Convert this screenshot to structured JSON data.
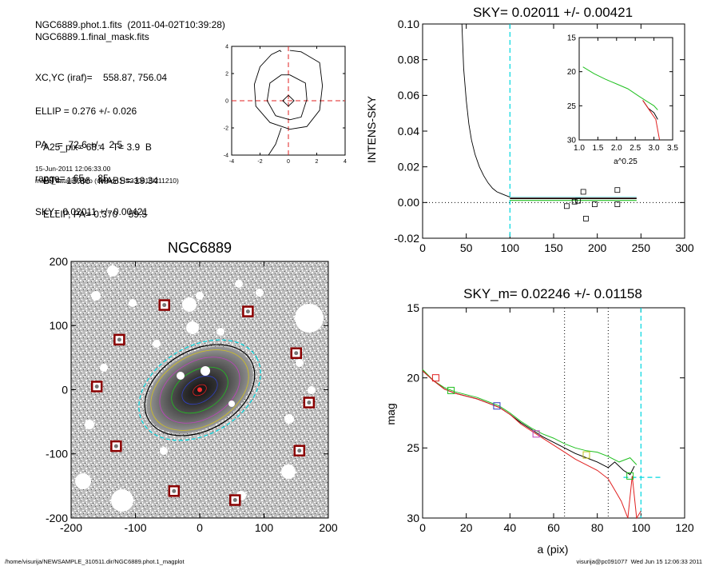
{
  "header": {
    "line1": "NGC6889.phot.1.fits  (2011-04-02T10:39:28)",
    "line2": "NGC6889.1.final_mask.fits",
    "params": [
      "XC,YC (iraf)=    558.87, 756.04",
      "ELLIP = 0.276 +/- 0.026",
      "PA    =  72.6 +/-   2.5",
      "range=   65.-   85.",
      "SKY= 0.02011 +/- 0.00421"
    ],
    "photometry": [
      "A25_pix= 68.4   T= 3.9  B",
      "BT=  13.86   MABS=-19.34",
      "ELLIP, PA= 0.370    59.5"
    ],
    "date": "15-Jun-2011 12:06:33.00",
    "program": "make_datalist0.pro (version HS230610/211210)"
  },
  "footer": {
    "path": "/home/visurija/NEWSAMPLE_310511.dir/NGC6889.phot.1_magplot",
    "user": "visurija@pc091077  Wed Jun 15 12:06:33 2011"
  },
  "colors": {
    "cyan": "#00d8e0",
    "red": "#e02020",
    "green": "#20c020",
    "gray": "#888888",
    "box": "#8b0000"
  },
  "chart_data": [
    {
      "id": "contour",
      "type": "line",
      "title": "",
      "xlim": [
        -4,
        4
      ],
      "ylim": [
        -4,
        4
      ],
      "xticks": [
        -4,
        -2,
        0,
        2,
        4
      ],
      "yticks": [
        -4,
        -2,
        0,
        2,
        4
      ],
      "series": [
        {
          "x": [
            0.1,
            0.9,
            2.2,
            2.4,
            2.2,
            1.3,
            0.1,
            -1.3,
            -2.3,
            -2.4,
            -2.0,
            -1.2,
            -0.6,
            -0.5
          ],
          "y": [
            3.7,
            3.6,
            2.8,
            1.1,
            -0.7,
            -1.9,
            -2.1,
            -1.6,
            -0.4,
            1.2,
            2.5,
            3.4,
            3.7,
            3.6
          ]
        },
        {
          "x": [
            0.1,
            1.2,
            1.3,
            0.9,
            0.1,
            -0.9,
            -1.5,
            -1.3,
            -0.5,
            0.1
          ],
          "y": [
            1.9,
            1.3,
            0.1,
            -1.2,
            -1.4,
            -1.1,
            0.0,
            1.3,
            1.9,
            1.9
          ]
        },
        {
          "x": [
            0.0,
            0.4,
            0.0,
            -0.4,
            0.0
          ],
          "y": [
            0.4,
            0.0,
            -0.4,
            0.0,
            0.4
          ]
        },
        {
          "x": [
            -0.5,
            -0.9,
            -1.4
          ],
          "y": [
            -2.0,
            -3.2,
            -4.0
          ]
        }
      ]
    },
    {
      "id": "sky",
      "type": "line",
      "title": "SKY= 0.02011 +/- 0.00421",
      "ylabel": "INTENS-SKY",
      "xlim": [
        0,
        300
      ],
      "ylim": [
        -0.02,
        0.1
      ],
      "xticks": [
        0,
        50,
        100,
        150,
        200,
        250,
        300
      ],
      "yticks": [
        -0.02,
        0.0,
        0.02,
        0.04,
        0.06,
        0.08,
        0.1
      ],
      "ytick_labels": [
        "-0.02",
        "0.00",
        "0.02",
        "0.04",
        "0.06",
        "0.08",
        "0.10"
      ],
      "profile": {
        "x": [
          45,
          47,
          50,
          53,
          56,
          60,
          65,
          70,
          75,
          80,
          85,
          90,
          95,
          100
        ],
        "y": [
          0.1,
          0.075,
          0.057,
          0.044,
          0.035,
          0.027,
          0.02,
          0.015,
          0.011,
          0.008,
          0.006,
          0.005,
          0.004,
          0.003
        ]
      },
      "sky_levels": [
        0.0028,
        0.0025,
        0.0022,
        0.0012
      ],
      "boxes": {
        "x": [
          165,
          174,
          178,
          184,
          187,
          197,
          223,
          223
        ],
        "y": [
          -0.002,
          0.0005,
          0.001,
          0.006,
          -0.009,
          -0.001,
          0.007,
          -0.001
        ]
      },
      "vline_cyan": 100,
      "inset": {
        "xlabel": "a^0.25",
        "xlim": [
          1.0,
          3.5
        ],
        "ylim": [
          30,
          15
        ],
        "xticks": [
          1.0,
          1.5,
          2.0,
          2.5,
          3.0,
          3.5
        ],
        "xtick_labels": [
          "1.0",
          "1.5",
          "2.0",
          "2.5",
          "3.0",
          "3.5"
        ],
        "yticks": [
          15,
          20,
          25,
          30
        ],
        "green": {
          "x": [
            1.1,
            1.4,
            1.7,
            2.0,
            2.3,
            2.6,
            2.8,
            3.0,
            3.1
          ],
          "y": [
            19.3,
            20.3,
            21.1,
            21.8,
            22.5,
            23.6,
            24.3,
            25.0,
            25.6
          ]
        },
        "black": {
          "x": [
            2.7,
            2.85,
            3.0,
            3.1
          ],
          "y": [
            24.2,
            25.4,
            26.0,
            27.0
          ]
        },
        "red": {
          "x": [
            2.7,
            2.9,
            3.05,
            3.15
          ],
          "y": [
            24.2,
            25.8,
            27.0,
            30.0
          ]
        }
      }
    },
    {
      "id": "image",
      "type": "scatter",
      "title": "NGC6889",
      "xlim": [
        -200,
        200
      ],
      "ylim": [
        -200,
        200
      ],
      "xticks": [
        -200,
        -100,
        0,
        100,
        200
      ],
      "yticks": [
        -200,
        -100,
        0,
        100,
        200
      ],
      "galaxy_center": [
        0,
        0
      ],
      "boxes": {
        "x": [
          -55,
          75,
          -125,
          150,
          -160,
          170,
          -130,
          155,
          -40,
          55
        ],
        "y": [
          132,
          122,
          78,
          57,
          5,
          -20,
          -88,
          -95,
          -158,
          -172
        ]
      }
    },
    {
      "id": "magprofile",
      "type": "line",
      "title": "SKY_m=  0.02246 +/- 0.01158",
      "xlabel": "a (pix)",
      "ylabel": "mag",
      "xlim": [
        0,
        120
      ],
      "ylim": [
        30,
        15
      ],
      "xticks": [
        0,
        20,
        40,
        60,
        80,
        100,
        120
      ],
      "yticks": [
        15,
        20,
        25,
        30
      ],
      "vlines_dotted": [
        65,
        85
      ],
      "vline_cyan": 100,
      "sky_mag": 27.1,
      "series": [
        {
          "name": "",
          "color": "#20c020",
          "x": [
            0,
            5,
            10,
            15,
            20,
            25,
            30,
            35,
            40,
            45,
            50,
            55,
            60,
            65,
            70,
            75,
            80,
            85,
            90,
            95,
            98
          ],
          "y": [
            19.4,
            20.2,
            20.7,
            21.0,
            21.2,
            21.4,
            21.7,
            22.0,
            22.5,
            23.1,
            23.6,
            24.0,
            24.3,
            24.7,
            25.0,
            25.2,
            25.3,
            25.6,
            26.0,
            25.7,
            26.2
          ]
        },
        {
          "name": "",
          "color": "#000000",
          "x": [
            0,
            5,
            10,
            15,
            20,
            25,
            30,
            35,
            40,
            45,
            50,
            55,
            60,
            65,
            70,
            75,
            80,
            85,
            88,
            92,
            95,
            97
          ],
          "y": [
            19.5,
            20.2,
            20.8,
            21.1,
            21.3,
            21.5,
            21.8,
            22.1,
            22.6,
            23.2,
            23.7,
            24.2,
            24.6,
            25.0,
            25.4,
            25.7,
            26.0,
            26.4,
            26.0,
            26.6,
            26.9,
            26.3
          ]
        },
        {
          "name": "",
          "color": "#e02020",
          "x": [
            0,
            5,
            10,
            15,
            20,
            25,
            30,
            35,
            40,
            45,
            50,
            55,
            60,
            65,
            70,
            75,
            80,
            85,
            88,
            91,
            94,
            96,
            98,
            100
          ],
          "y": [
            19.5,
            20.2,
            20.8,
            21.1,
            21.3,
            21.5,
            21.8,
            22.1,
            22.6,
            23.3,
            23.8,
            24.3,
            24.8,
            25.3,
            25.8,
            26.2,
            26.6,
            27.2,
            28.0,
            28.8,
            30.0,
            27.0,
            30.0,
            29.5
          ]
        }
      ],
      "boxes": {
        "x": [
          6,
          13,
          34,
          52,
          75,
          95
        ],
        "y": [
          20.0,
          20.9,
          22.0,
          24.0,
          25.5,
          27.0
        ],
        "colors": [
          "#e02020",
          "#20c020",
          "#3040c0",
          "#c040c0",
          "#c0c020",
          "#20c020"
        ]
      }
    }
  ]
}
